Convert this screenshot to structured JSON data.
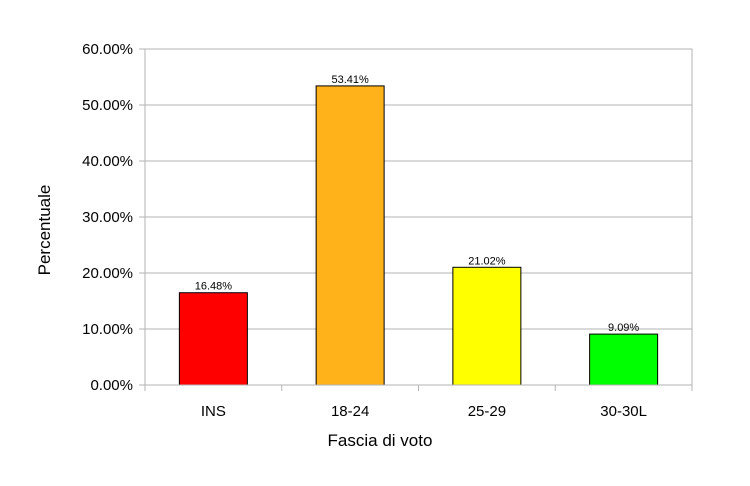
{
  "chart_data": {
    "type": "bar",
    "title": "",
    "xlabel": "Fascia di voto",
    "ylabel": "Percentuale",
    "categories": [
      "INS",
      "18-24",
      "25-29",
      "30-30L"
    ],
    "values": [
      16.48,
      53.41,
      21.02,
      9.09
    ],
    "value_labels": [
      "16.48%",
      "53.41%",
      "21.02%",
      "9.09%"
    ],
    "bar_colors": [
      "#ff0000",
      "#ffb219",
      "#ffff00",
      "#00ff00"
    ],
    "ylim": [
      0,
      60
    ],
    "yticks": [
      0,
      10,
      20,
      30,
      40,
      50,
      60
    ],
    "ytick_labels": [
      "0.00%",
      "10.00%",
      "20.00%",
      "30.00%",
      "40.00%",
      "50.00%",
      "60.00%"
    ],
    "grid": true,
    "legend": "none"
  }
}
